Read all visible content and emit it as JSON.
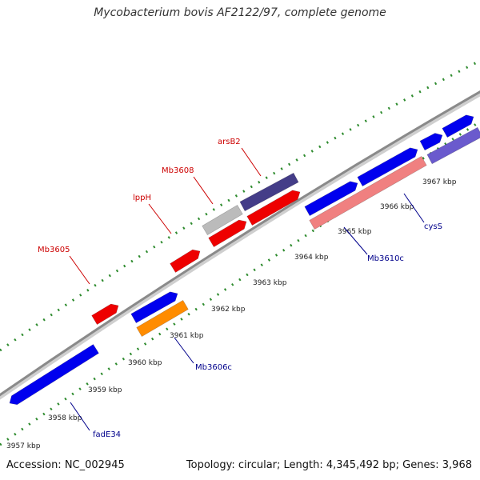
{
  "title": "Mycobacterium bovis AF2122/97, complete genome",
  "footer": {
    "accession": "Accession: NC_002945",
    "summary": "Topology: circular; Length: 4,345,492 bp; Genes: 3,968"
  },
  "colors": {
    "backbone": "#8a8a8a",
    "dotted_track": "#2e8b2e",
    "forward_label": "#cc0000",
    "reverse_label": "#00008b",
    "gene_blue": "#0000ee",
    "gene_red": "#ee0000",
    "gene_gray": "#bbbbbb",
    "gene_navy": "#443d88",
    "gene_orange": "#ff8c00",
    "gene_pink": "#f08080",
    "gene_slate": "#6a5acd"
  },
  "ticks": [
    {
      "label": "3957 kbp"
    },
    {
      "label": "3958 kbp"
    },
    {
      "label": "3959 kbp"
    },
    {
      "label": "3960 kbp"
    },
    {
      "label": "3961 kbp"
    },
    {
      "label": "3962 kbp"
    },
    {
      "label": "3963 kbp"
    },
    {
      "label": "3964 kbp"
    },
    {
      "label": "3965 kbp"
    },
    {
      "label": "3966 kbp"
    },
    {
      "label": "3967 kbp"
    }
  ],
  "gene_labels": [
    {
      "name": "Mb3605",
      "strand": "forward"
    },
    {
      "name": "lppH",
      "strand": "forward"
    },
    {
      "name": "Mb3608",
      "strand": "forward"
    },
    {
      "name": "arsB2",
      "strand": "forward"
    },
    {
      "name": "fadE34",
      "strand": "reverse"
    },
    {
      "name": "Mb3606c",
      "strand": "reverse"
    },
    {
      "name": "Mb3610c",
      "strand": "reverse"
    },
    {
      "name": "cysS",
      "strand": "reverse"
    }
  ]
}
